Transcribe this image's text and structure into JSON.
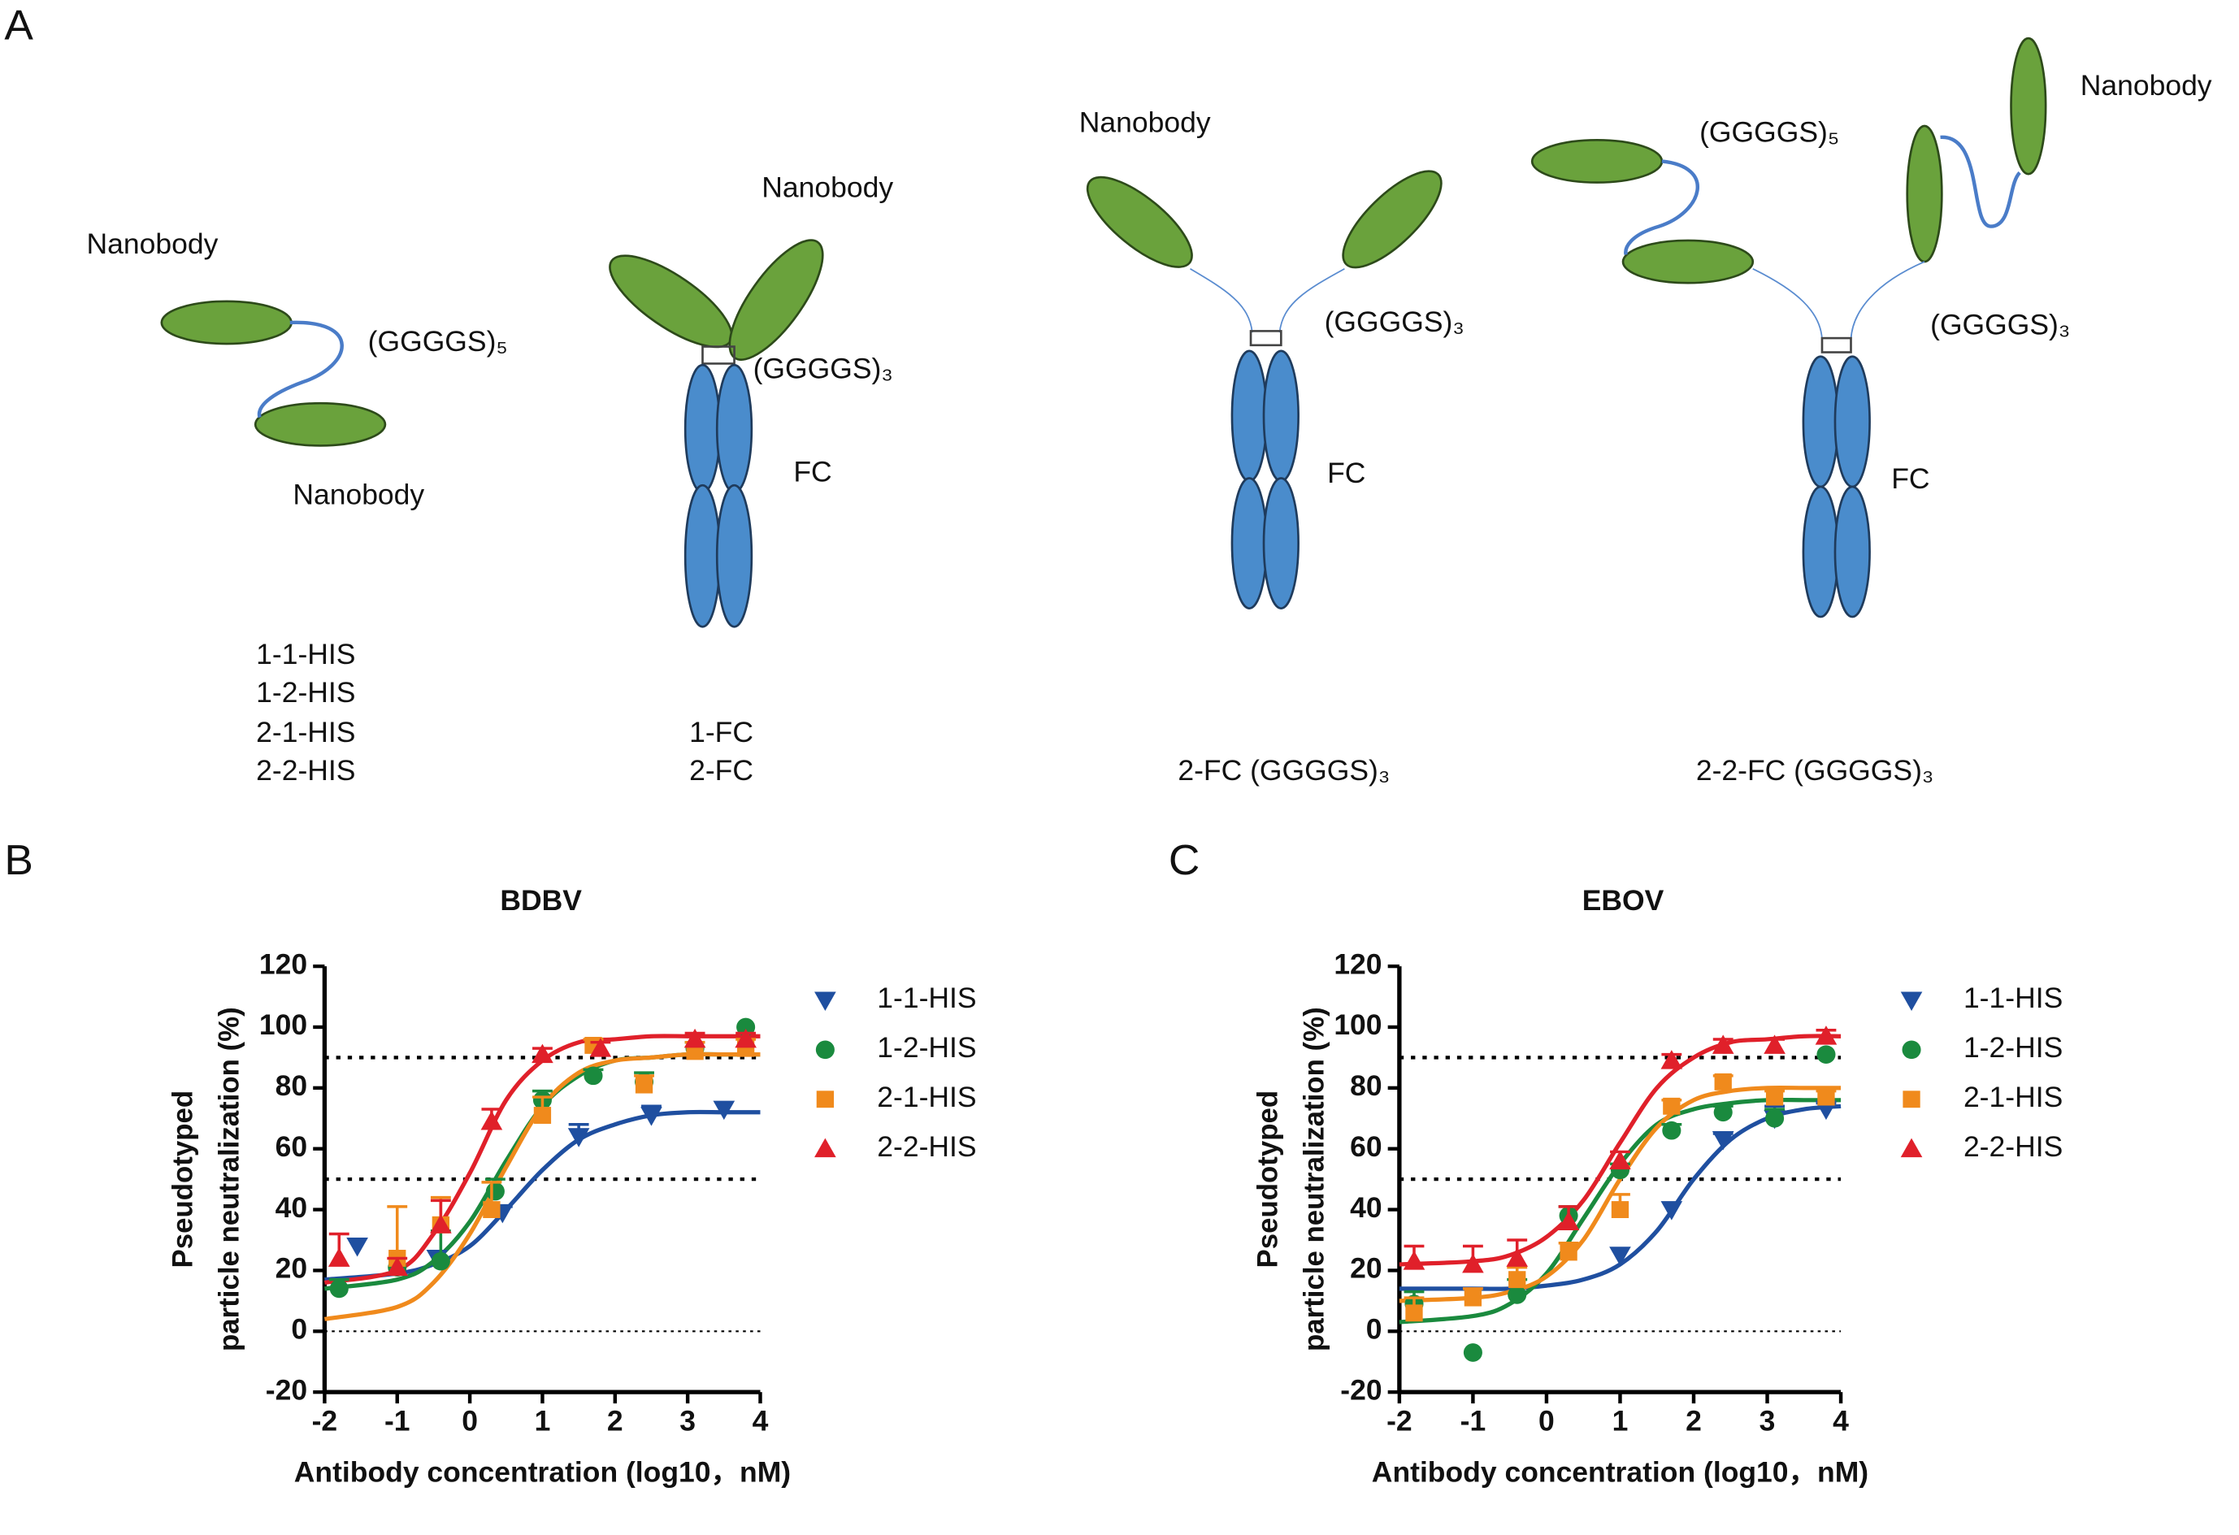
{
  "panel_labels": [
    "A",
    "B",
    "C"
  ],
  "diagram": {
    "constructs": [
      {
        "labels": [
          "Nanobody",
          "(GGGGS)₅",
          "Nanobody"
        ],
        "names": [
          "1-1-HIS",
          "1-2-HIS",
          "2-1-HIS",
          "2-2-HIS"
        ]
      },
      {
        "labels": [
          "Nanobody",
          "(GGGGS)₃",
          "FC"
        ],
        "names": [
          "1-FC",
          "2-FC"
        ]
      },
      {
        "labels": [
          "Nanobody",
          "(GGGGS)₃",
          "FC"
        ],
        "names": [
          "2-FC (GGGGS)₃"
        ]
      },
      {
        "labels": [
          "(GGGGS)₅",
          "Nanobody",
          "(GGGGS)₃",
          "FC"
        ],
        "names": [
          "2-2-FC (GGGGS)₃"
        ]
      }
    ]
  },
  "chart_data": [
    {
      "type": "scatter",
      "title": "BDBV",
      "xlabel": "Antibody concentration (log10，nM)",
      "ylabel": [
        "Pseudotyped",
        "particle neutralization (%)"
      ],
      "xlim": [
        -2,
        4
      ],
      "xticks": [
        -2,
        -1,
        0,
        1,
        2,
        3,
        4
      ],
      "ylim": [
        -20,
        120
      ],
      "yticks": [
        -20,
        0,
        20,
        40,
        60,
        80,
        100,
        120
      ],
      "reference_lines": [
        90,
        50
      ],
      "zero_line": true,
      "legend": "right",
      "fit_x": [
        -2,
        -1,
        -0.5,
        0,
        0.5,
        1,
        1.5,
        2,
        2.5,
        3,
        3.5,
        4
      ],
      "series": [
        {
          "name": "1-1-HIS",
          "color": "#1f4fa0",
          "marker": "triangle-down",
          "x": [
            -1.55,
            -0.45,
            0.45,
            1.5,
            2.5,
            3.5
          ],
          "values": [
            28,
            24,
            39,
            64,
            71,
            73
          ],
          "errors": [
            null,
            null,
            2,
            4,
            3,
            null
          ],
          "fit_values": [
            17,
            19,
            22,
            28,
            40,
            53,
            63,
            68,
            71,
            72,
            72,
            72
          ]
        },
        {
          "name": "1-2-HIS",
          "color": "#1a8a3e",
          "marker": "circle",
          "x": [
            -1.8,
            -1.0,
            -0.4,
            0.35,
            1.0,
            1.7,
            2.4,
            3.1,
            3.8
          ],
          "values": [
            14,
            21,
            23,
            46,
            76,
            84,
            82,
            93,
            100
          ],
          "errors": [
            3,
            null,
            10,
            4,
            3,
            2,
            3,
            2,
            null
          ],
          "fit_values": [
            14,
            17,
            23,
            36,
            56,
            74,
            84,
            89,
            90,
            91,
            91,
            91
          ]
        },
        {
          "name": "2-1-HIS",
          "color": "#f08a1c",
          "marker": "square",
          "x": [
            -1.0,
            -0.4,
            0.3,
            1.0,
            1.7,
            2.4,
            3.1,
            3.8
          ],
          "values": [
            24,
            35,
            40,
            71,
            94,
            81,
            92,
            93
          ],
          "errors": [
            17,
            9,
            9,
            6,
            2,
            3,
            3,
            3
          ],
          "fit_values": [
            4,
            8,
            16,
            32,
            54,
            74,
            85,
            89,
            90,
            91,
            91,
            91
          ]
        },
        {
          "name": "2-2-HIS",
          "color": "#e0202a",
          "marker": "triangle-up",
          "x": [
            -1.8,
            -1.0,
            -0.4,
            0.3,
            1.0,
            1.8,
            3.1,
            3.8
          ],
          "values": [
            24,
            21,
            35,
            69,
            91,
            93,
            96,
            96
          ],
          "errors": [
            8,
            3,
            8,
            4,
            2,
            2,
            2,
            2
          ],
          "fit_values": [
            16,
            20,
            32,
            52,
            76,
            89,
            95,
            96,
            97,
            97,
            97,
            97
          ]
        }
      ]
    },
    {
      "type": "scatter",
      "title": "EBOV",
      "xlabel": "Antibody concentration (log10，nM)",
      "ylabel": [
        "Pseudotyped",
        "particle neutralization (%)"
      ],
      "xlim": [
        -2,
        4
      ],
      "xticks": [
        -2,
        -1,
        0,
        1,
        2,
        3,
        4
      ],
      "ylim": [
        -20,
        120
      ],
      "yticks": [
        -20,
        0,
        20,
        40,
        60,
        80,
        100,
        120
      ],
      "reference_lines": [
        90,
        50
      ],
      "zero_line": true,
      "legend": "right",
      "fit_x": [
        -2,
        -1,
        -0.5,
        0,
        0.5,
        1,
        1.5,
        2,
        2.5,
        3,
        3.5,
        4
      ],
      "series": [
        {
          "name": "1-1-HIS",
          "color": "#1f4fa0",
          "marker": "triangle-down",
          "x": [
            1.0,
            1.7,
            2.4,
            3.1,
            3.8
          ],
          "values": [
            25,
            40,
            63,
            70,
            73
          ],
          "errors": [
            null,
            null,
            2,
            4,
            2
          ],
          "fit_values": [
            14,
            14,
            14,
            15,
            17,
            22,
            33,
            50,
            63,
            70,
            73,
            74
          ]
        },
        {
          "name": "1-2-HIS",
          "color": "#1a8a3e",
          "marker": "circle",
          "x": [
            -1.8,
            -1.0,
            -0.4,
            0.3,
            1.0,
            1.7,
            2.4,
            3.1,
            3.8
          ],
          "values": [
            9,
            -7,
            12,
            38,
            53,
            66,
            72,
            70,
            91
          ],
          "errors": [
            4,
            null,
            5,
            3,
            2,
            2,
            2,
            3,
            null
          ],
          "fit_values": [
            3,
            5,
            9,
            19,
            37,
            55,
            68,
            73,
            75,
            76,
            76,
            76
          ]
        },
        {
          "name": "2-1-HIS",
          "color": "#f08a1c",
          "marker": "square",
          "x": [
            -1.8,
            -1.0,
            -0.4,
            0.3,
            1.0,
            1.7,
            2.4,
            3.1,
            3.8
          ],
          "values": [
            6,
            11,
            17,
            26,
            40,
            74,
            82,
            77,
            77
          ],
          "errors": [
            5,
            3,
            4,
            3,
            5,
            2,
            2,
            2,
            2
          ],
          "fit_values": [
            10,
            11,
            13,
            18,
            30,
            50,
            67,
            76,
            79,
            80,
            80,
            80
          ]
        },
        {
          "name": "2-2-HIS",
          "color": "#e0202a",
          "marker": "triangle-up",
          "x": [
            -1.8,
            -1.0,
            -0.4,
            0.3,
            1.0,
            1.7,
            2.4,
            3.1,
            3.8
          ],
          "values": [
            23,
            22,
            24,
            36,
            56,
            89,
            94,
            94,
            97
          ],
          "errors": [
            5,
            6,
            6,
            5,
            3,
            2,
            2,
            2,
            2
          ],
          "fit_values": [
            22,
            23,
            25,
            31,
            43,
            62,
            80,
            90,
            95,
            96,
            97,
            97
          ]
        }
      ]
    }
  ]
}
